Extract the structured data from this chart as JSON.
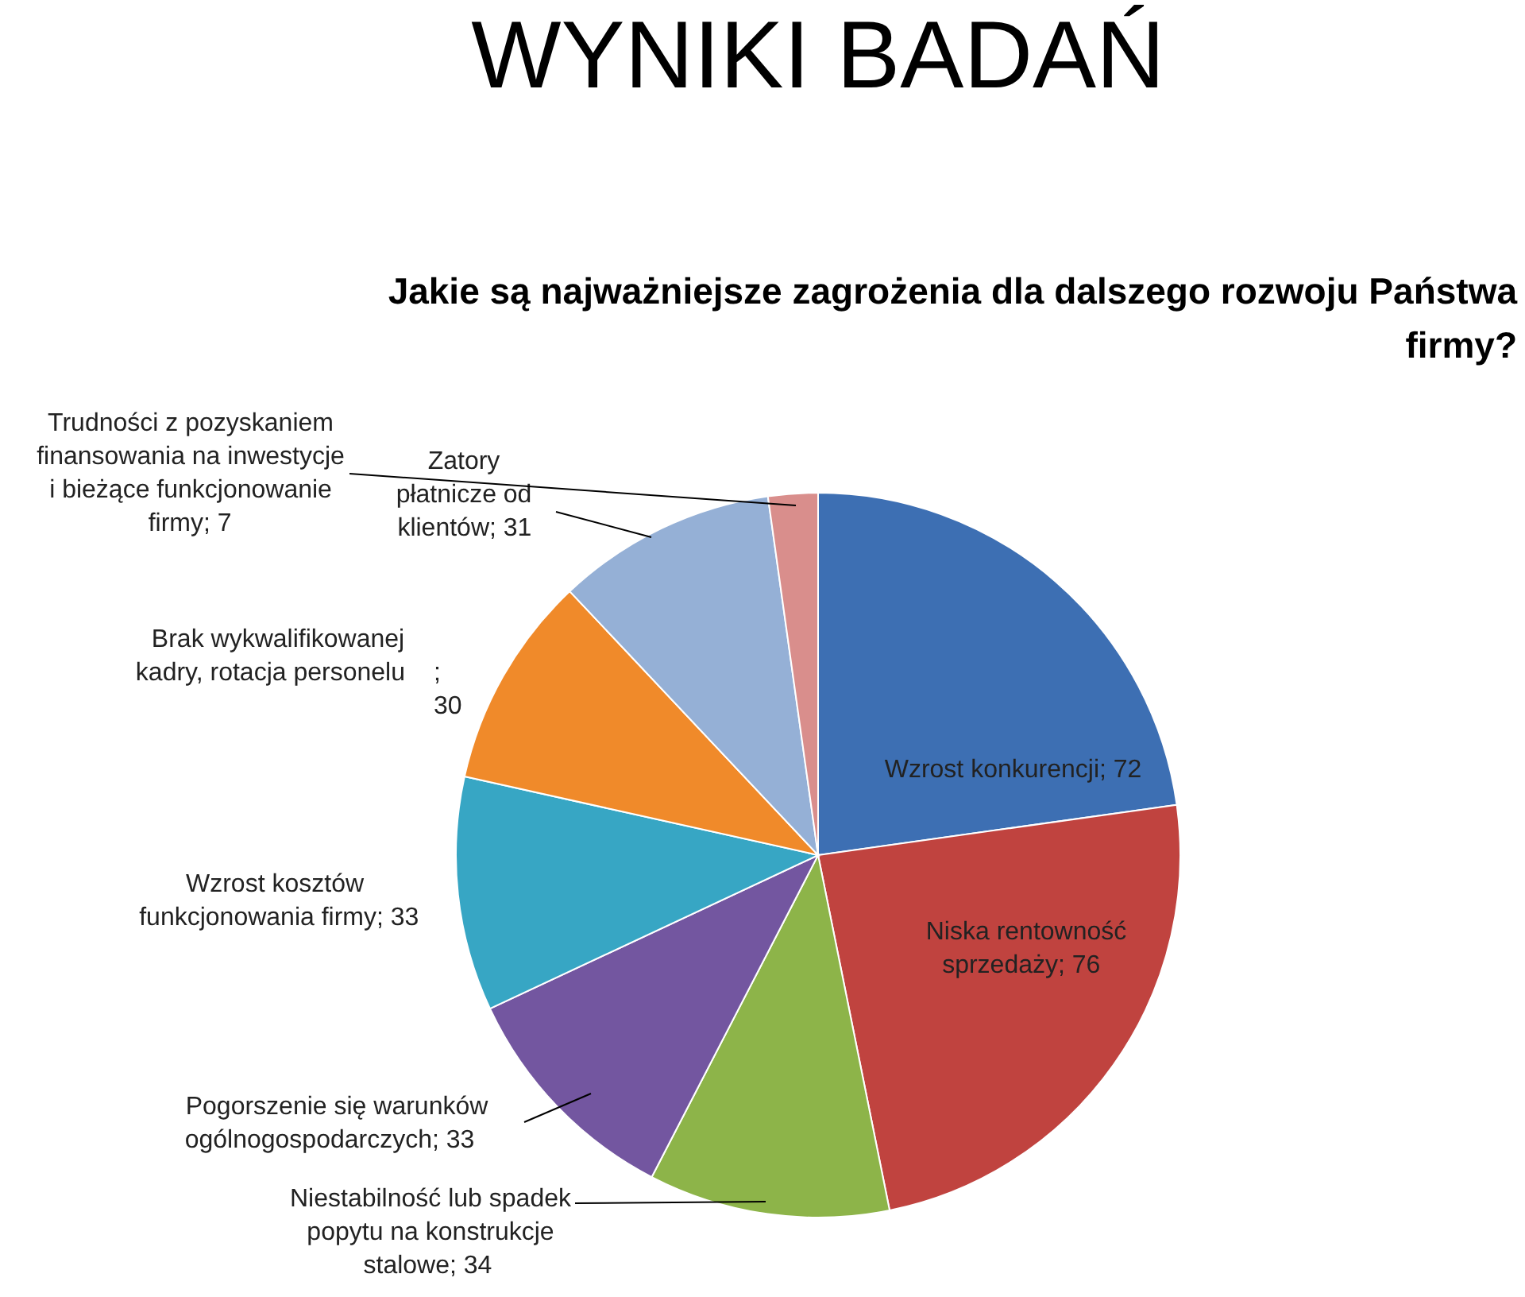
{
  "chart_data": {
    "type": "pie",
    "title": "WYNIKI BADAŃ",
    "subtitle": "Jakie są najważniejsze zagrożenia dla dalszego rozwoju Państwa firmy?",
    "categories": [
      "Wzrost konkurencji",
      "Niska rentowność sprzedaży",
      "Niestabilność lub spadek popytu na konstrukcje stalowe",
      "Pogorszenie się warunków ogólnogospodarczych",
      "Wzrost kosztów funkcjonowania firmy",
      "Brak wykwalifikowanej kadry, rotacja personelu",
      "Zatory płatnicze od klientów",
      "Trudności z pozyskaniem finansowania na inwestycje i bieżące funkcjonowanie firmy"
    ],
    "values": [
      72,
      76,
      34,
      33,
      33,
      30,
      31,
      7
    ],
    "colors": [
      "#3d6fb3",
      "#c0433f",
      "#8db449",
      "#7356a0",
      "#37a6c4",
      "#f08a2a",
      "#95b0d6",
      "#d98e8c"
    ],
    "value_labels": [
      "; 72",
      "; 76",
      "; 34",
      "; 33",
      "; 33",
      "; 30",
      "; 31",
      "; 7"
    ]
  }
}
